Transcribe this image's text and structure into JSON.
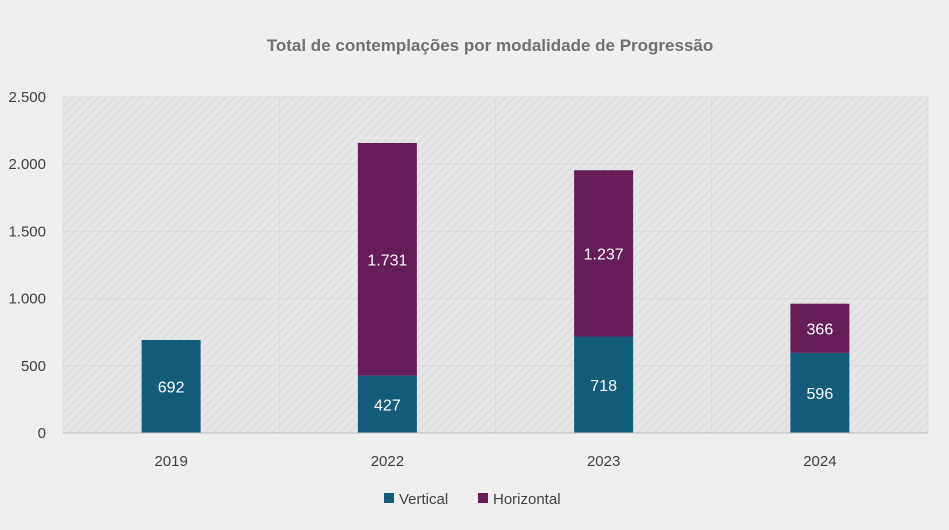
{
  "chart_data": {
    "type": "bar",
    "stacked": true,
    "title": "Total de contemplações por modalidade de Progressão",
    "xlabel": "",
    "ylabel": "",
    "categories": [
      "2019",
      "2022",
      "2023",
      "2024"
    ],
    "series": [
      {
        "name": "Vertical",
        "color": "#135c7a",
        "values": [
          692,
          427,
          718,
          596
        ],
        "labels": [
          "692",
          "427",
          "718",
          "596"
        ]
      },
      {
        "name": "Horizontal",
        "color": "#651c57",
        "values": [
          0,
          1731,
          1237,
          366
        ],
        "labels": [
          "",
          "1.731",
          "1.237",
          "366"
        ]
      }
    ],
    "ylim": [
      0,
      2500
    ],
    "yticks": [
      0,
      500,
      1000,
      1500,
      2000,
      2500
    ],
    "ytick_labels": [
      "0",
      "500",
      "1.000",
      "1.500",
      "2.000",
      "2.500"
    ],
    "grid": true,
    "legend_position": "bottom"
  }
}
